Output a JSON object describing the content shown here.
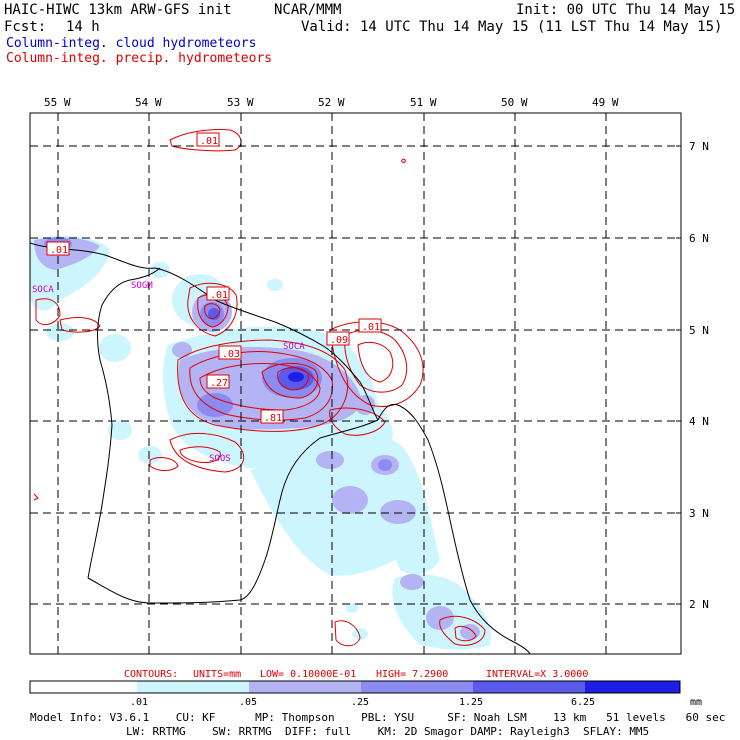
{
  "header": {
    "model_title": "HAIC-HIWC 13km ARW-GFS init",
    "org": "NCAR/MMM",
    "init": "Init: 00 UTC Thu 14 May 15",
    "fcst_label": "Fcst:",
    "fcst_value": "14 h",
    "valid": "Valid: 14 UTC Thu 14 May 15 (11 LST Thu 14 May 15)"
  },
  "legend": {
    "cloud": "Column-integ. cloud hydrometeors",
    "precip": "Column-integ. precip. hydrometeors",
    "cloud_color": "#0000cc",
    "precip_color": "#dd0000"
  },
  "axes": {
    "lon_labels": [
      "55 W",
      "54 W",
      "53 W",
      "52 W",
      "51 W",
      "50 W",
      "49 W"
    ],
    "lat_labels": [
      "7 N",
      "6 N",
      "5 N",
      "4 N",
      "3 N",
      "2 N"
    ]
  },
  "contour_labels": [
    ".01",
    ".01",
    ".01",
    ".01",
    ".03",
    ".09",
    ".27",
    ".81"
  ],
  "place_labels": [
    "SOGM",
    "SOCA",
    "SOOS",
    "SOCA"
  ],
  "contours_text": {
    "c1": "CONTOURS:",
    "c2": "UNITS=mm",
    "c3": "LOW= 0.10000E-01",
    "c4": "HIGH= 7.2900",
    "c5": "INTERVAL=X 3.0000"
  },
  "colorbar": {
    "ticks": [
      ".01",
      ".05",
      ".25",
      "1.25",
      "6.25"
    ],
    "unit": "mm",
    "colors": [
      "#ffffff",
      "#cdf5fd",
      "#b4b4f5",
      "#8c8cf0",
      "#5a5aeb",
      "#1e1ee6"
    ]
  },
  "model_info": {
    "line1": "Model Info: V3.6.1    CU: KF      MP: Thompson    PBL: YSU     SF: Noah LSM    13 km   51 levels   60 sec",
    "line2": "LW: RRTMG    SW: RRTMG  DIFF: full    KM: 2D Smagor DAMP: Rayleigh3  SFLAY: MM5"
  }
}
